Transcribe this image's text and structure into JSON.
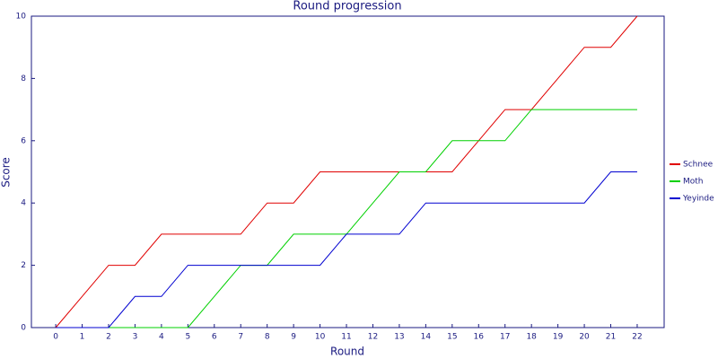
{
  "chart_data": {
    "type": "line",
    "title": "Round progression",
    "x_label": "Round",
    "y_label": "Score",
    "x": [
      0,
      1,
      2,
      3,
      4,
      5,
      6,
      7,
      8,
      9,
      10,
      11,
      12,
      13,
      14,
      15,
      16,
      17,
      18,
      19,
      20,
      21,
      22
    ],
    "series": [
      {
        "name": "Schnee",
        "color": "#e00000",
        "values": [
          0,
          1,
          2,
          2,
          3,
          3,
          3,
          3,
          4,
          4,
          5,
          5,
          5,
          5,
          5,
          5,
          6,
          7,
          7,
          8,
          9,
          9,
          10
        ]
      },
      {
        "name": "Moth",
        "color": "#00d000",
        "values": [
          0,
          0,
          0,
          0,
          0,
          0,
          1,
          2,
          2,
          3,
          3,
          3,
          4,
          5,
          5,
          6,
          6,
          6,
          7,
          7,
          7,
          7,
          7
        ]
      },
      {
        "name": "Yeyinde",
        "color": "#0000d0",
        "values": [
          0,
          0,
          0,
          1,
          1,
          2,
          2,
          2,
          2,
          2,
          2,
          3,
          3,
          3,
          4,
          4,
          4,
          4,
          4,
          4,
          4,
          5,
          5
        ]
      }
    ],
    "xlim": [
      -0.92,
      23.02
    ],
    "xticks": [
      0,
      1,
      2,
      3,
      4,
      5,
      6,
      7,
      8,
      9,
      10,
      11,
      12,
      13,
      14,
      15,
      16,
      17,
      18,
      19,
      20,
      21,
      22
    ],
    "ylim": [
      0,
      10
    ],
    "yticks": [
      0,
      2,
      4,
      6,
      8,
      10
    ],
    "grid": false,
    "legend": "right"
  }
}
